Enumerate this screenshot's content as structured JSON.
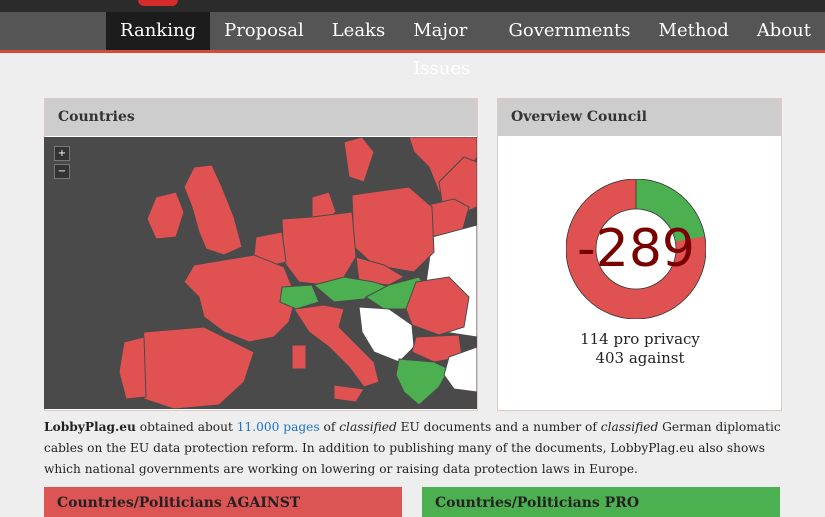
{
  "nav": {
    "items": [
      {
        "label": "Ranking",
        "active": true
      },
      {
        "label": "Proposal"
      },
      {
        "label": "Leaks"
      },
      {
        "label": "Major Issues"
      },
      {
        "label": "Governments"
      },
      {
        "label": "Method"
      },
      {
        "label": "About"
      }
    ]
  },
  "countries_panel": {
    "title": "Countries",
    "zoom_in": "+",
    "zoom_out": "−",
    "legend_colors": {
      "against": "#e05252",
      "pro": "#4caf50",
      "neutral": "#ffffff",
      "sea": "#4a4a4a"
    }
  },
  "council_panel": {
    "title": "Overview Council",
    "score": "-289",
    "pro_count": 114,
    "against_count": 403,
    "pro_text": "114 pro privacy",
    "against_text": "403 against",
    "colors": {
      "pro": "#4caf50",
      "against": "#e05252"
    }
  },
  "intro": {
    "brand": "LobbyPlag.eu",
    "t1": " obtained about ",
    "link": "11.000 pages",
    "t2": " of ",
    "em1": "classified",
    "t3": " EU documents and a number of ",
    "em2": "classified",
    "t4": " German diplomatic cables on the EU data protection reform. In addition to publishing many of the documents, LobbyPlag.eu also shows which national governments are working on lowering or raising data protection laws in Europe."
  },
  "boxes": {
    "against_title": "Countries/Politicians AGAINST",
    "pro_title": "Countries/Politicians PRO"
  }
}
